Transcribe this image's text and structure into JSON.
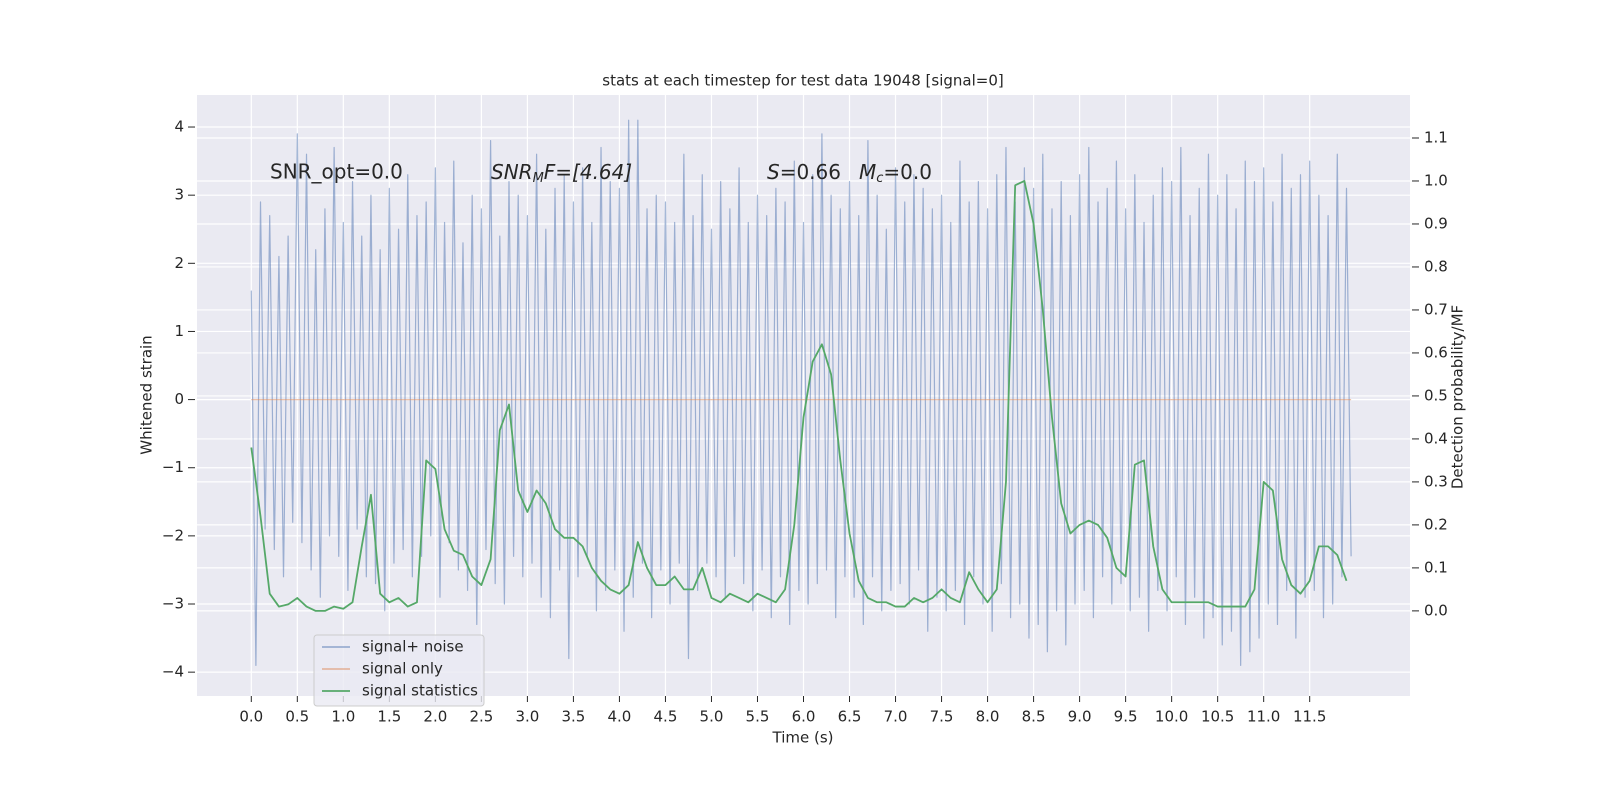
{
  "chart_data": {
    "type": "line",
    "title": "stats at each timestep for test data 19048 [signal=0]",
    "xlabel": "Time (s)",
    "ylabel": "Whitened strain",
    "y2label": "Detection probability/MF",
    "annotations": [
      [
        "SNR_opt=0.0"
      ],
      [
        "SNR",
        "M",
        "F=[4.64]"
      ],
      [
        "S",
        "=0.66"
      ],
      [
        "M",
        "c",
        "=0.0"
      ]
    ],
    "xlim": [
      -0.59,
      12.59
    ],
    "ylim": [
      -4.35,
      4.47
    ],
    "y2lim": [
      -0.198,
      1.2
    ],
    "xticks": [
      {
        "value": 0,
        "label": "0.0"
      },
      0.5,
      {
        "value": 1,
        "label": "1.0"
      },
      1.5,
      {
        "value": 2,
        "label": "2.0"
      },
      2.5,
      {
        "value": 3,
        "label": "3.0"
      },
      3.5,
      {
        "value": 4,
        "label": "4.0"
      },
      4.5,
      {
        "value": 5,
        "label": "5.0"
      },
      5.5,
      {
        "value": 6,
        "label": "6.0"
      },
      6.5,
      {
        "value": 7,
        "label": "7.0"
      },
      7.5,
      {
        "value": 8,
        "label": "8.0"
      },
      8.5,
      {
        "value": 9,
        "label": "9.0"
      },
      9.5,
      {
        "value": 10,
        "label": "10.0"
      },
      10.5,
      {
        "value": 11,
        "label": "11.0"
      },
      11.5
    ],
    "yticks": [
      {
        "value": -4,
        "label": "−4"
      },
      {
        "value": -3,
        "label": "−3"
      },
      {
        "value": -2,
        "label": "−2"
      },
      {
        "value": -1,
        "label": "−1"
      },
      0,
      1,
      2,
      3,
      4
    ],
    "y2ticks": [
      {
        "value": 0,
        "label": "0.0"
      },
      0.1,
      0.2,
      0.3,
      0.4,
      0.5,
      0.6,
      0.7,
      0.8,
      0.9,
      {
        "value": 1,
        "label": "1.0"
      },
      1.1
    ],
    "grid": true,
    "legend": "lower left",
    "series": [
      {
        "name": "signal+ noise",
        "color": "#4c72b0",
        "opacity": 0.5,
        "x": [
          0,
          0.05,
          0.1,
          0.15,
          0.2,
          0.25,
          0.3,
          0.35,
          0.4,
          0.45,
          0.5,
          0.55,
          0.6,
          0.65,
          0.7,
          0.75,
          0.8,
          0.85,
          0.9,
          0.95,
          1,
          1.05,
          1.1,
          1.15,
          1.2,
          1.25,
          1.3,
          1.35,
          1.4,
          1.45,
          1.5,
          1.55,
          1.6,
          1.65,
          1.7,
          1.75,
          1.8,
          1.85,
          1.9,
          1.95,
          2,
          2.05,
          2.1,
          2.15,
          2.2,
          2.25,
          2.3,
          2.35,
          2.4,
          2.45,
          2.5,
          2.55,
          2.6,
          2.65,
          2.7,
          2.75,
          2.8,
          2.85,
          2.9,
          2.95,
          3,
          3.05,
          3.1,
          3.15,
          3.2,
          3.25,
          3.3,
          3.35,
          3.4,
          3.45,
          3.5,
          3.55,
          3.6,
          3.65,
          3.7,
          3.75,
          3.8,
          3.85,
          3.9,
          3.95,
          4,
          4.05,
          4.1,
          4.15,
          4.2,
          4.25,
          4.3,
          4.35,
          4.4,
          4.45,
          4.5,
          4.55,
          4.6,
          4.65,
          4.7,
          4.75,
          4.8,
          4.85,
          4.9,
          4.95,
          5,
          5.05,
          5.1,
          5.15,
          5.2,
          5.25,
          5.3,
          5.35,
          5.4,
          5.45,
          5.5,
          5.55,
          5.6,
          5.65,
          5.7,
          5.75,
          5.8,
          5.85,
          5.9,
          5.95,
          6,
          6.05,
          6.1,
          6.15,
          6.2,
          6.25,
          6.3,
          6.35,
          6.4,
          6.45,
          6.5,
          6.55,
          6.6,
          6.65,
          6.7,
          6.75,
          6.8,
          6.85,
          6.9,
          6.95,
          7,
          7.05,
          7.1,
          7.15,
          7.2,
          7.25,
          7.3,
          7.35,
          7.4,
          7.45,
          7.5,
          7.55,
          7.6,
          7.65,
          7.7,
          7.75,
          7.8,
          7.85,
          7.9,
          7.95,
          8,
          8.05,
          8.1,
          8.15,
          8.2,
          8.25,
          8.3,
          8.35,
          8.4,
          8.45,
          8.5,
          8.55,
          8.6,
          8.65,
          8.7,
          8.75,
          8.8,
          8.85,
          8.9,
          8.95,
          9,
          9.05,
          9.1,
          9.15,
          9.2,
          9.25,
          9.3,
          9.35,
          9.4,
          9.45,
          9.5,
          9.55,
          9.6,
          9.65,
          9.7,
          9.75,
          9.8,
          9.85,
          9.9,
          9.95,
          10,
          10.05,
          10.1,
          10.15,
          10.2,
          10.25,
          10.3,
          10.35,
          10.4,
          10.45,
          10.5,
          10.55,
          10.6,
          10.65,
          10.7,
          10.75,
          10.8,
          10.85,
          10.9,
          10.95,
          11,
          11.05,
          11.1,
          11.15,
          11.2,
          11.25,
          11.3,
          11.35,
          11.4,
          11.45,
          11.5,
          11.55,
          11.6,
          11.65,
          11.7,
          11.75,
          11.8,
          11.85,
          11.9,
          11.95
        ],
        "values": [
          1.6,
          -3.9,
          2.9,
          -1.9,
          2.7,
          -2.2,
          2.1,
          -2.6,
          2.4,
          -1.8,
          3.9,
          -2.1,
          3.6,
          -2.5,
          2.2,
          -2.9,
          2.8,
          -2.0,
          3.7,
          -2.3,
          2.6,
          -2.8,
          3.2,
          -1.9,
          2.4,
          -2.6,
          3.0,
          -2.7,
          2.2,
          -3.1,
          3.1,
          -2.4,
          2.5,
          -2.2,
          3.3,
          -2.6,
          2.7,
          -2.3,
          2.9,
          -2.0,
          3.4,
          -2.9,
          2.6,
          -2.1,
          3.5,
          -2.5,
          2.3,
          -2.8,
          3.0,
          -3.3,
          2.8,
          -2.2,
          3.8,
          -2.7,
          2.4,
          -3.0,
          3.2,
          -2.3,
          3.0,
          -2.6,
          2.7,
          -2.4,
          3.6,
          -2.9,
          2.5,
          -3.2,
          3.1,
          -2.5,
          3.3,
          -3.8,
          2.9,
          -2.6,
          3.4,
          -2.3,
          2.6,
          -3.1,
          3.7,
          -2.8,
          3.2,
          -2.5,
          3.1,
          -3.4,
          4.1,
          -2.9,
          4.1,
          -2.4,
          2.8,
          -3.2,
          3.0,
          -2.5,
          2.9,
          -3.0,
          2.6,
          -2.4,
          3.6,
          -3.8,
          2.7,
          -2.8,
          3.3,
          -2.4,
          2.5,
          -2.6,
          3.2,
          -2.9,
          2.8,
          -2.3,
          3.4,
          -2.7,
          2.6,
          -3.1,
          3.0,
          -2.5,
          2.7,
          -3.2,
          3.1,
          -2.6,
          2.9,
          -3.3,
          3.5,
          -2.8,
          2.6,
          -3.0,
          3.3,
          -2.7,
          3.9,
          -2.5,
          3.0,
          -3.2,
          2.8,
          -2.6,
          3.2,
          -2.9,
          2.7,
          -3.3,
          3.8,
          -2.6,
          3.0,
          -3.1,
          2.5,
          -2.8,
          3.4,
          -2.7,
          2.9,
          -3.0,
          3.3,
          -2.5,
          3.1,
          -3.4,
          2.8,
          -2.9,
          3.0,
          -3.1,
          2.6,
          -2.8,
          3.5,
          -3.3,
          2.9,
          -2.6,
          3.2,
          -3.0,
          2.8,
          -3.4,
          3.3,
          -2.7,
          3.7,
          -3.2,
          2.9,
          -3.0,
          3.4,
          -3.5,
          3.1,
          -3.3,
          3.6,
          -3.7,
          2.8,
          -3.1,
          3.2,
          -3.6,
          2.7,
          -3.0,
          3.3,
          -2.8,
          3.7,
          -3.2,
          2.9,
          -2.6,
          3.1,
          -3.0,
          3.5,
          -2.7,
          2.8,
          -3.1,
          3.3,
          -2.9,
          2.6,
          -3.4,
          3.0,
          -2.8,
          3.4,
          -3.1,
          3.2,
          -2.6,
          3.7,
          -3.3,
          2.7,
          -2.9,
          3.1,
          -3.5,
          3.6,
          -3.2,
          3.0,
          -3.6,
          3.3,
          -3.4,
          2.8,
          -3.9,
          3.5,
          -3.7,
          3.2,
          -3.5,
          3.4,
          -3.0,
          2.9,
          -3.3,
          3.6,
          -2.8,
          3.1,
          -3.5,
          3.3,
          -2.9,
          3.5,
          -2.8,
          3.0,
          -3.2,
          2.7,
          -3.0,
          3.6,
          -2.6,
          3.1,
          -2.3
        ]
      },
      {
        "name": "signal only",
        "color": "#dd8452",
        "opacity": 0.5,
        "x": [
          0,
          11.95
        ],
        "values": [
          0,
          0
        ]
      },
      {
        "name": "signal statistics",
        "color": "#55a868",
        "opacity": 1,
        "axis": "y2",
        "x": [
          0,
          0.1,
          0.2,
          0.3,
          0.4,
          0.5,
          0.6,
          0.7,
          0.8,
          0.9,
          1,
          1.1,
          1.2,
          1.3,
          1.4,
          1.5,
          1.6,
          1.7,
          1.8,
          1.9,
          2,
          2.1,
          2.2,
          2.3,
          2.4,
          2.5,
          2.6,
          2.7,
          2.8,
          2.9,
          3,
          3.1,
          3.2,
          3.3,
          3.4,
          3.5,
          3.6,
          3.7,
          3.8,
          3.9,
          4,
          4.1,
          4.2,
          4.3,
          4.4,
          4.5,
          4.6,
          4.7,
          4.8,
          4.9,
          5,
          5.1,
          5.2,
          5.3,
          5.4,
          5.5,
          5.6,
          5.7,
          5.8,
          5.9,
          6,
          6.1,
          6.2,
          6.3,
          6.4,
          6.5,
          6.6,
          6.7,
          6.8,
          6.9,
          7,
          7.1,
          7.2,
          7.3,
          7.4,
          7.5,
          7.6,
          7.7,
          7.8,
          7.9,
          8,
          8.1,
          8.2,
          8.3,
          8.4,
          8.5,
          8.6,
          8.7,
          8.8,
          8.9,
          9,
          9.1,
          9.2,
          9.3,
          9.4,
          9.5,
          9.6,
          9.7,
          9.8,
          9.9,
          10,
          10.1,
          10.2,
          10.3,
          10.4,
          10.5,
          10.6,
          10.7,
          10.8,
          10.9,
          11,
          11.1,
          11.2,
          11.3,
          11.4,
          11.5,
          11.6,
          11.7,
          11.8,
          11.9
        ],
        "values": [
          0.38,
          0.22,
          0.04,
          0.01,
          0.015,
          0.03,
          0.01,
          0.0,
          0.0,
          0.01,
          0.005,
          0.02,
          0.15,
          0.27,
          0.04,
          0.02,
          0.03,
          0.01,
          0.02,
          0.35,
          0.33,
          0.19,
          0.14,
          0.13,
          0.08,
          0.06,
          0.12,
          0.42,
          0.48,
          0.28,
          0.23,
          0.28,
          0.25,
          0.19,
          0.17,
          0.17,
          0.15,
          0.1,
          0.07,
          0.05,
          0.04,
          0.06,
          0.16,
          0.1,
          0.06,
          0.06,
          0.08,
          0.05,
          0.05,
          0.1,
          0.03,
          0.02,
          0.04,
          0.03,
          0.02,
          0.04,
          0.03,
          0.02,
          0.05,
          0.2,
          0.45,
          0.58,
          0.62,
          0.55,
          0.35,
          0.18,
          0.07,
          0.03,
          0.02,
          0.02,
          0.01,
          0.01,
          0.03,
          0.02,
          0.03,
          0.05,
          0.03,
          0.02,
          0.09,
          0.05,
          0.02,
          0.05,
          0.3,
          0.99,
          1.0,
          0.9,
          0.7,
          0.45,
          0.25,
          0.18,
          0.2,
          0.21,
          0.2,
          0.17,
          0.1,
          0.08,
          0.34,
          0.35,
          0.15,
          0.05,
          0.02,
          0.02,
          0.02,
          0.02,
          0.02,
          0.01,
          0.01,
          0.01,
          0.01,
          0.05,
          0.3,
          0.28,
          0.12,
          0.06,
          0.04,
          0.07,
          0.15,
          0.15,
          0.13,
          0.07
        ]
      }
    ]
  }
}
